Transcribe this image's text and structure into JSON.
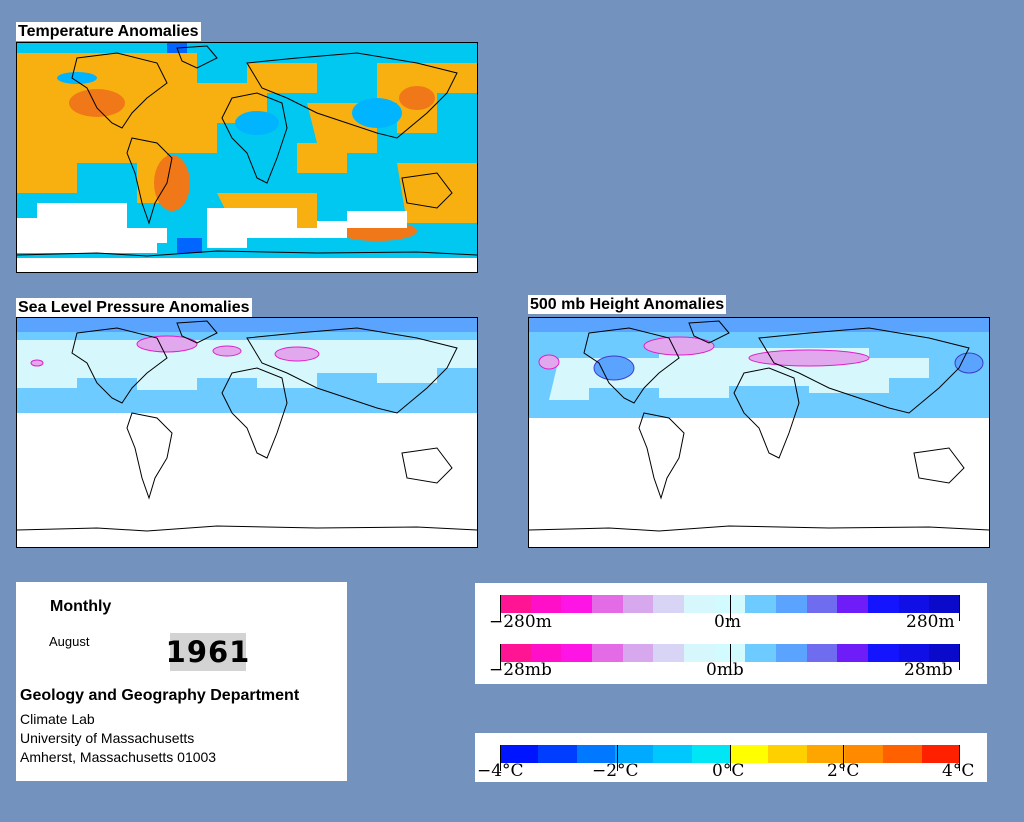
{
  "temperature_map": {
    "title": "Temperature Anomalies"
  },
  "slp_map": {
    "title": "Sea Level Pressure Anomalies"
  },
  "height_map": {
    "title": "500 mb Height Anomalies"
  },
  "info": {
    "period": "Monthly",
    "month": "August",
    "year": "1961",
    "department": "Geology and Geography Department",
    "lab": "Climate Lab",
    "university": "University of Massachusetts",
    "address": "Amherst, Massachusetts 01003"
  },
  "legends": {
    "height": {
      "min": "−280m",
      "mid": "0m",
      "max": "280m"
    },
    "pressure": {
      "min": "−28mb",
      "mid": "0mb",
      "max": "28mb"
    },
    "temperature": {
      "l1": "−4°C",
      "l2": "−2°C",
      "l3": "0°C",
      "l4": "2°C",
      "l5": "4°C"
    }
  },
  "colors": {
    "background": "#7393be",
    "anomaly_scale": [
      "#ff1493",
      "#ff10c8",
      "#ff14e6",
      "#e36be6",
      "#d7a8ee",
      "#d8d4f6",
      "#d6f8fc",
      "#d2fbff",
      "#6ecbff",
      "#5aa4ff",
      "#6f6cf0",
      "#6e1cf8",
      "#1414ff",
      "#1010e6",
      "#0a0acb"
    ],
    "temperature_scale": [
      "#0015ff",
      "#003eff",
      "#0078ff",
      "#00aaff",
      "#00c8ff",
      "#00e6f5",
      "#ffff00",
      "#ffd000",
      "#ffa500",
      "#ff8a00",
      "#ff6000",
      "#ff2000"
    ]
  }
}
